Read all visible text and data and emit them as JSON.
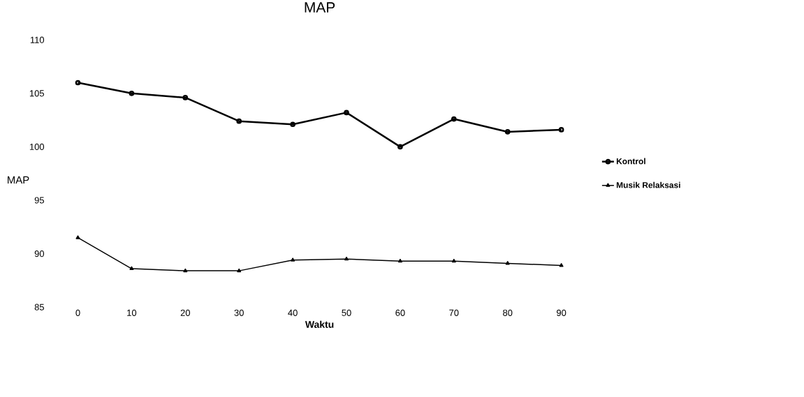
{
  "chart_data": {
    "type": "line",
    "title": "MAP",
    "xlabel": "Waktu",
    "ylabel": "MAP",
    "categories": [
      "0",
      "10",
      "20",
      "30",
      "40",
      "50",
      "60",
      "70",
      "80",
      "90"
    ],
    "series": [
      {
        "name": "Kontrol",
        "color": "#000000",
        "marker": "circle",
        "values": [
          106.0,
          105.0,
          104.6,
          102.4,
          102.1,
          103.2,
          100.0,
          102.6,
          101.4,
          101.6
        ]
      },
      {
        "name": "Musik Relaksasi",
        "color": "#000000",
        "marker": "triangle",
        "values": [
          91.5,
          88.6,
          88.4,
          88.4,
          89.4,
          89.5,
          89.3,
          89.3,
          89.1,
          88.9
        ]
      }
    ],
    "ylim": [
      85,
      110
    ],
    "yticks": [
      85,
      90,
      95,
      100,
      105,
      110
    ],
    "legend": "right"
  }
}
